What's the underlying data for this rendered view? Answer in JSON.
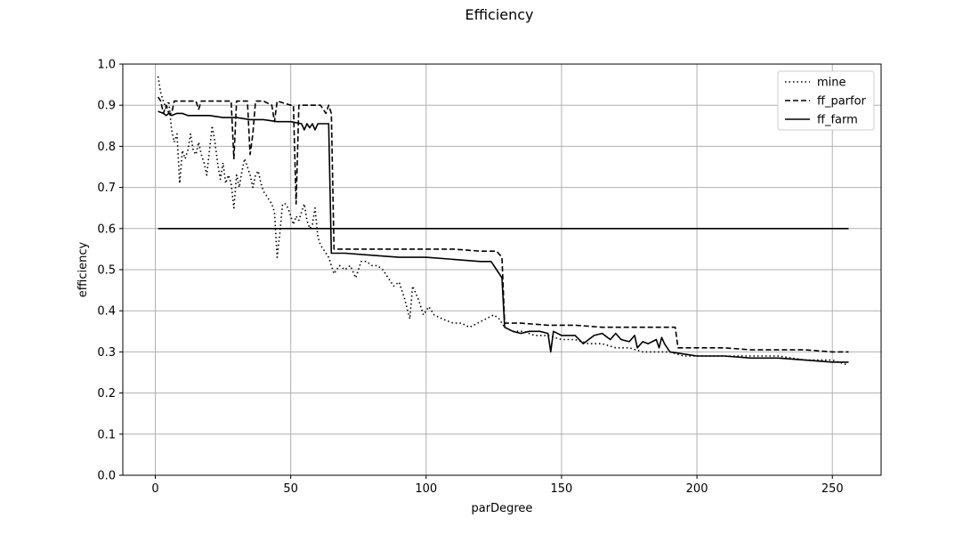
{
  "chart_data": {
    "type": "line",
    "title": "Efficiency",
    "xlabel": "parDegree",
    "ylabel": "efficiency",
    "xlim": [
      -12,
      268
    ],
    "ylim": [
      0,
      1.0
    ],
    "xticks": [
      0,
      50,
      100,
      150,
      200,
      250
    ],
    "yticks": [
      0.0,
      0.1,
      0.2,
      0.3,
      0.4,
      0.5,
      0.6,
      0.7,
      0.8,
      0.9,
      1.0
    ],
    "xtick_labels": [
      "0",
      "50",
      "100",
      "150",
      "200",
      "250"
    ],
    "ytick_labels": [
      "0.0",
      "0.1",
      "0.2",
      "0.3",
      "0.4",
      "0.5",
      "0.6",
      "0.7",
      "0.8",
      "0.9",
      "1.0"
    ],
    "grid": true,
    "legend_position": "top-right",
    "series": [
      {
        "name": "mine",
        "style": "dotted",
        "color": "#000000",
        "points": [
          [
            1,
            0.97
          ],
          [
            2,
            0.93
          ],
          [
            3,
            0.91
          ],
          [
            4,
            0.89
          ],
          [
            5,
            0.91
          ],
          [
            6,
            0.84
          ],
          [
            7,
            0.81
          ],
          [
            8,
            0.83
          ],
          [
            9,
            0.71
          ],
          [
            10,
            0.79
          ],
          [
            11,
            0.77
          ],
          [
            12,
            0.79
          ],
          [
            13,
            0.83
          ],
          [
            14,
            0.79
          ],
          [
            15,
            0.78
          ],
          [
            16,
            0.81
          ],
          [
            17,
            0.78
          ],
          [
            18,
            0.76
          ],
          [
            19,
            0.73
          ],
          [
            20,
            0.79
          ],
          [
            21,
            0.85
          ],
          [
            22,
            0.81
          ],
          [
            23,
            0.76
          ],
          [
            24,
            0.72
          ],
          [
            25,
            0.76
          ],
          [
            26,
            0.71
          ],
          [
            27,
            0.73
          ],
          [
            28,
            0.71
          ],
          [
            29,
            0.65
          ],
          [
            30,
            0.73
          ],
          [
            31,
            0.7
          ],
          [
            32,
            0.74
          ],
          [
            33,
            0.77
          ],
          [
            34,
            0.75
          ],
          [
            35,
            0.73
          ],
          [
            36,
            0.7
          ],
          [
            37,
            0.73
          ],
          [
            38,
            0.74
          ],
          [
            39,
            0.71
          ],
          [
            40,
            0.69
          ],
          [
            41,
            0.68
          ],
          [
            42,
            0.67
          ],
          [
            43,
            0.66
          ],
          [
            44,
            0.64
          ],
          [
            45,
            0.53
          ],
          [
            46,
            0.59
          ],
          [
            47,
            0.66
          ],
          [
            48,
            0.66
          ],
          [
            49,
            0.65
          ],
          [
            50,
            0.63
          ],
          [
            51,
            0.61
          ],
          [
            52,
            0.63
          ],
          [
            53,
            0.62
          ],
          [
            54,
            0.64
          ],
          [
            55,
            0.66
          ],
          [
            56,
            0.62
          ],
          [
            57,
            0.6
          ],
          [
            58,
            0.61
          ],
          [
            59,
            0.65
          ],
          [
            60,
            0.58
          ],
          [
            61,
            0.56
          ],
          [
            62,
            0.55
          ],
          [
            64,
            0.53
          ],
          [
            66,
            0.49
          ],
          [
            68,
            0.51
          ],
          [
            70,
            0.5
          ],
          [
            72,
            0.51
          ],
          [
            74,
            0.48
          ],
          [
            76,
            0.52
          ],
          [
            78,
            0.52
          ],
          [
            80,
            0.51
          ],
          [
            82,
            0.51
          ],
          [
            84,
            0.5
          ],
          [
            86,
            0.48
          ],
          [
            88,
            0.46
          ],
          [
            90,
            0.47
          ],
          [
            92,
            0.43
          ],
          [
            94,
            0.38
          ],
          [
            95,
            0.46
          ],
          [
            97,
            0.43
          ],
          [
            99,
            0.39
          ],
          [
            101,
            0.41
          ],
          [
            103,
            0.39
          ],
          [
            106,
            0.38
          ],
          [
            110,
            0.37
          ],
          [
            113,
            0.37
          ],
          [
            116,
            0.36
          ],
          [
            119,
            0.37
          ],
          [
            122,
            0.38
          ],
          [
            125,
            0.39
          ],
          [
            127,
            0.38
          ],
          [
            129,
            0.36
          ],
          [
            132,
            0.35
          ],
          [
            136,
            0.35
          ],
          [
            140,
            0.34
          ],
          [
            145,
            0.34
          ],
          [
            150,
            0.33
          ],
          [
            155,
            0.33
          ],
          [
            160,
            0.32
          ],
          [
            165,
            0.32
          ],
          [
            170,
            0.31
          ],
          [
            175,
            0.31
          ],
          [
            180,
            0.3
          ],
          [
            185,
            0.3
          ],
          [
            190,
            0.3
          ],
          [
            195,
            0.29
          ],
          [
            200,
            0.29
          ],
          [
            210,
            0.29
          ],
          [
            220,
            0.29
          ],
          [
            230,
            0.29
          ],
          [
            240,
            0.28
          ],
          [
            250,
            0.28
          ],
          [
            255,
            0.27
          ]
        ]
      },
      {
        "name": "ff_parfor",
        "style": "dashed",
        "color": "#000000",
        "points": [
          [
            1,
            0.92
          ],
          [
            2,
            0.91
          ],
          [
            3,
            0.88
          ],
          [
            4,
            0.9
          ],
          [
            5,
            0.88
          ],
          [
            6,
            0.88
          ],
          [
            7,
            0.91
          ],
          [
            10,
            0.91
          ],
          [
            15,
            0.91
          ],
          [
            16,
            0.89
          ],
          [
            17,
            0.91
          ],
          [
            20,
            0.91
          ],
          [
            25,
            0.91
          ],
          [
            28,
            0.91
          ],
          [
            29,
            0.77
          ],
          [
            30,
            0.91
          ],
          [
            34,
            0.91
          ],
          [
            35,
            0.78
          ],
          [
            36,
            0.83
          ],
          [
            37,
            0.91
          ],
          [
            40,
            0.91
          ],
          [
            43,
            0.9
          ],
          [
            44,
            0.86
          ],
          [
            45,
            0.91
          ],
          [
            50,
            0.9
          ],
          [
            51,
            0.9
          ],
          [
            52,
            0.66
          ],
          [
            53,
            0.9
          ],
          [
            58,
            0.9
          ],
          [
            61,
            0.9
          ],
          [
            63,
            0.88
          ],
          [
            64,
            0.9
          ],
          [
            65,
            0.88
          ],
          [
            66,
            0.55
          ],
          [
            70,
            0.55
          ],
          [
            80,
            0.55
          ],
          [
            90,
            0.55
          ],
          [
            100,
            0.55
          ],
          [
            110,
            0.55
          ],
          [
            120,
            0.545
          ],
          [
            126,
            0.545
          ],
          [
            128,
            0.53
          ],
          [
            129,
            0.37
          ],
          [
            135,
            0.37
          ],
          [
            145,
            0.365
          ],
          [
            155,
            0.365
          ],
          [
            165,
            0.36
          ],
          [
            175,
            0.36
          ],
          [
            185,
            0.36
          ],
          [
            192,
            0.36
          ],
          [
            193,
            0.31
          ],
          [
            200,
            0.31
          ],
          [
            210,
            0.31
          ],
          [
            220,
            0.305
          ],
          [
            230,
            0.305
          ],
          [
            240,
            0.305
          ],
          [
            250,
            0.3
          ],
          [
            256,
            0.3
          ]
        ]
      },
      {
        "name": "ff_farm",
        "style": "solid",
        "color": "#000000",
        "points": [
          [
            1,
            0.885
          ],
          [
            3,
            0.88
          ],
          [
            4,
            0.875
          ],
          [
            5,
            0.88
          ],
          [
            6,
            0.875
          ],
          [
            8,
            0.88
          ],
          [
            10,
            0.88
          ],
          [
            12,
            0.875
          ],
          [
            15,
            0.875
          ],
          [
            20,
            0.875
          ],
          [
            25,
            0.87
          ],
          [
            30,
            0.87
          ],
          [
            35,
            0.865
          ],
          [
            40,
            0.865
          ],
          [
            45,
            0.86
          ],
          [
            50,
            0.86
          ],
          [
            54,
            0.855
          ],
          [
            55,
            0.84
          ],
          [
            56,
            0.855
          ],
          [
            57,
            0.845
          ],
          [
            58,
            0.855
          ],
          [
            59,
            0.84
          ],
          [
            60,
            0.855
          ],
          [
            64,
            0.855
          ],
          [
            65,
            0.54
          ],
          [
            70,
            0.54
          ],
          [
            80,
            0.535
          ],
          [
            90,
            0.53
          ],
          [
            100,
            0.53
          ],
          [
            110,
            0.525
          ],
          [
            120,
            0.52
          ],
          [
            124,
            0.52
          ],
          [
            126,
            0.5
          ],
          [
            128,
            0.48
          ],
          [
            129,
            0.36
          ],
          [
            132,
            0.35
          ],
          [
            135,
            0.345
          ],
          [
            138,
            0.35
          ],
          [
            142,
            0.35
          ],
          [
            145,
            0.345
          ],
          [
            146,
            0.3
          ],
          [
            147,
            0.35
          ],
          [
            150,
            0.34
          ],
          [
            155,
            0.34
          ],
          [
            158,
            0.32
          ],
          [
            162,
            0.34
          ],
          [
            165,
            0.345
          ],
          [
            168,
            0.33
          ],
          [
            170,
            0.345
          ],
          [
            172,
            0.33
          ],
          [
            175,
            0.325
          ],
          [
            177,
            0.34
          ],
          [
            178,
            0.31
          ],
          [
            180,
            0.325
          ],
          [
            182,
            0.32
          ],
          [
            185,
            0.33
          ],
          [
            186,
            0.31
          ],
          [
            187,
            0.335
          ],
          [
            188,
            0.32
          ],
          [
            190,
            0.3
          ],
          [
            195,
            0.295
          ],
          [
            200,
            0.29
          ],
          [
            210,
            0.29
          ],
          [
            220,
            0.285
          ],
          [
            230,
            0.285
          ],
          [
            240,
            0.28
          ],
          [
            250,
            0.275
          ],
          [
            256,
            0.275
          ]
        ]
      },
      {
        "name": "",
        "style": "solid",
        "color": "#000000",
        "points": [
          [
            1,
            0.6
          ],
          [
            256,
            0.6
          ]
        ]
      }
    ]
  }
}
